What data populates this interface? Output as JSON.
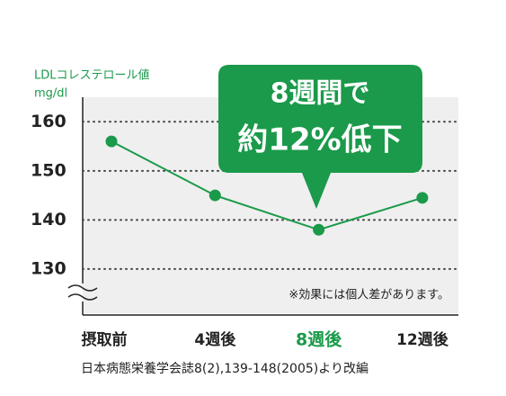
{
  "chart_data": {
    "type": "line",
    "y_label": "LDLコレステロール値",
    "y_unit": "mg/dl",
    "categories": [
      "摂取前",
      "4週後",
      "8週後",
      "12週後"
    ],
    "series": [
      {
        "name": null,
        "color": "#1a9a4a",
        "values": [
          156,
          145,
          138,
          144.5
        ]
      }
    ],
    "ylim": [
      121,
      165
    ],
    "yticks": [
      130,
      140,
      150,
      160
    ],
    "grid": true,
    "highlight_category": 2,
    "highlight_color": "#1a9a4a",
    "annotation": [
      "8週間で",
      "約12%低下"
    ],
    "note": "※効果には個人差があります。",
    "source": "日本病態栄養学会誌8(2),139-148(2005)より改編"
  }
}
